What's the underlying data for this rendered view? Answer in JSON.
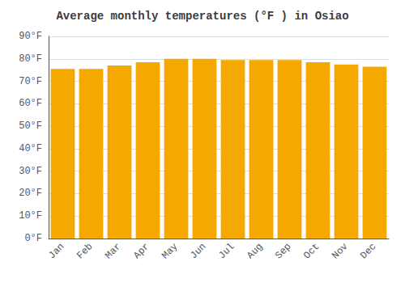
{
  "chart_data": {
    "type": "bar",
    "title": "Average monthly temperatures (°F ) in Osiao",
    "categories": [
      "Jan",
      "Feb",
      "Mar",
      "Apr",
      "May",
      "Jun",
      "Jul",
      "Aug",
      "Sep",
      "Oct",
      "Nov",
      "Dec"
    ],
    "values": [
      75.5,
      75.5,
      77.0,
      78.5,
      80.0,
      80.0,
      79.5,
      79.5,
      79.5,
      78.5,
      77.5,
      76.5
    ],
    "color": "#F5A800",
    "ylim": [
      0,
      90
    ],
    "yticks": [
      {
        "value": 0,
        "label": "0°F"
      },
      {
        "value": 10,
        "label": "10°F"
      },
      {
        "value": 20,
        "label": "20°F"
      },
      {
        "value": 30,
        "label": "30°F"
      },
      {
        "value": 40,
        "label": "40°F"
      },
      {
        "value": 50,
        "label": "50°F"
      },
      {
        "value": 60,
        "label": "60°F"
      },
      {
        "value": 70,
        "label": "70°F"
      },
      {
        "value": 80,
        "label": "80°F"
      },
      {
        "value": 90,
        "label": "90°F"
      }
    ],
    "grid": true
  }
}
